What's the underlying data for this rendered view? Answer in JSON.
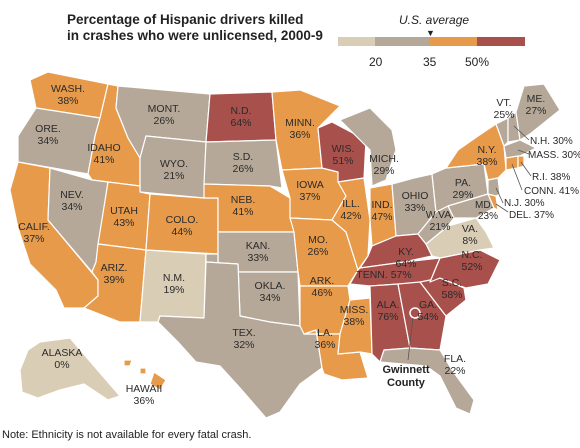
{
  "title": "Percentage of Hispanic drivers killed",
  "subtitle": "in crashes who were unlicensed, 2000-9",
  "legend": {
    "average_label": "U.S. average",
    "average_value": 35,
    "bins": [
      {
        "color": "#d9cdb6"
      },
      {
        "color": "#b5a898"
      },
      {
        "color": "#e79a4a"
      },
      {
        "color": "#a8504b"
      }
    ],
    "ticks": [
      "20",
      "35",
      "50%"
    ]
  },
  "colors": {
    "low": "#d9cdb6",
    "mid": "#b5a898",
    "high": "#e79a4a",
    "top": "#a8504b",
    "water": "#ffffff",
    "border": "#ffffff"
  },
  "states": {
    "WA": {
      "abbr": "WASH.",
      "value": "38%"
    },
    "OR": {
      "abbr": "ORE.",
      "value": "34%"
    },
    "CA": {
      "abbr": "CALIF.",
      "value": "37%"
    },
    "ID": {
      "abbr": "IDAHO",
      "value": "41%"
    },
    "NV": {
      "abbr": "NEV.",
      "value": "34%"
    },
    "MT": {
      "abbr": "MONT.",
      "value": "26%"
    },
    "WY": {
      "abbr": "WYO.",
      "value": "21%"
    },
    "UT": {
      "abbr": "UTAH",
      "value": "43%"
    },
    "AZ": {
      "abbr": "ARIZ.",
      "value": "39%"
    },
    "CO": {
      "abbr": "COLO.",
      "value": "44%"
    },
    "NM": {
      "abbr": "N.M.",
      "value": "19%"
    },
    "ND": {
      "abbr": "N.D.",
      "value": "64%"
    },
    "SD": {
      "abbr": "S.D.",
      "value": "26%"
    },
    "NE": {
      "abbr": "NEB.",
      "value": "41%"
    },
    "KS": {
      "abbr": "KAN.",
      "value": "33%"
    },
    "OK": {
      "abbr": "OKLA.",
      "value": "34%"
    },
    "TX": {
      "abbr": "TEX.",
      "value": "32%"
    },
    "MN": {
      "abbr": "MINN.",
      "value": "36%"
    },
    "IA": {
      "abbr": "IOWA",
      "value": "37%"
    },
    "MO": {
      "abbr": "MO.",
      "value": "26%"
    },
    "AR": {
      "abbr": "ARK.",
      "value": "46%"
    },
    "LA": {
      "abbr": "LA.",
      "value": "36%"
    },
    "WI": {
      "abbr": "WIS.",
      "value": "51%"
    },
    "IL": {
      "abbr": "ILL.",
      "value": "42%"
    },
    "MI": {
      "abbr": "MICH.",
      "value": "29%"
    },
    "IN": {
      "abbr": "IND.",
      "value": "47%"
    },
    "OH": {
      "abbr": "OHIO",
      "value": "33%"
    },
    "KY": {
      "abbr": "KY.",
      "value": "64%"
    },
    "TN": {
      "abbr": "TENN.",
      "value": "57%"
    },
    "MS": {
      "abbr": "MISS.",
      "value": "38%"
    },
    "AL": {
      "abbr": "ALA.",
      "value": "76%"
    },
    "GA": {
      "abbr": "GA.",
      "value": "54%"
    },
    "FL": {
      "abbr": "FLA.",
      "value": "22%"
    },
    "SC": {
      "abbr": "S.C.",
      "value": "58%"
    },
    "NC": {
      "abbr": "N.C.",
      "value": "52%"
    },
    "VA": {
      "abbr": "VA.",
      "value": "8%"
    },
    "WV": {
      "abbr": "W.VA.",
      "value": "21%"
    },
    "PA": {
      "abbr": "PA.",
      "value": "29%"
    },
    "NY": {
      "abbr": "N.Y.",
      "value": "38%"
    },
    "VT": {
      "abbr": "VT.",
      "value": "25%"
    },
    "ME": {
      "abbr": "ME.",
      "value": "27%"
    },
    "AK": {
      "abbr": "ALASKA",
      "value": "0%"
    },
    "HI": {
      "abbr": "HAWAII",
      "value": "36%"
    }
  },
  "callouts": {
    "NH": "N.H. 30%",
    "MA": "MASS. 30%",
    "RI": "R.I. 38%",
    "CT": "CONN. 41%",
    "NJ": "N.J. 30%",
    "DE": "DEL. 37%",
    "MD_abbr": "MD.",
    "MD_value": "23%"
  },
  "county": {
    "line1": "Gwinnett",
    "line2": "County"
  },
  "note": "Note: Ethnicity is not available for every fatal crash."
}
